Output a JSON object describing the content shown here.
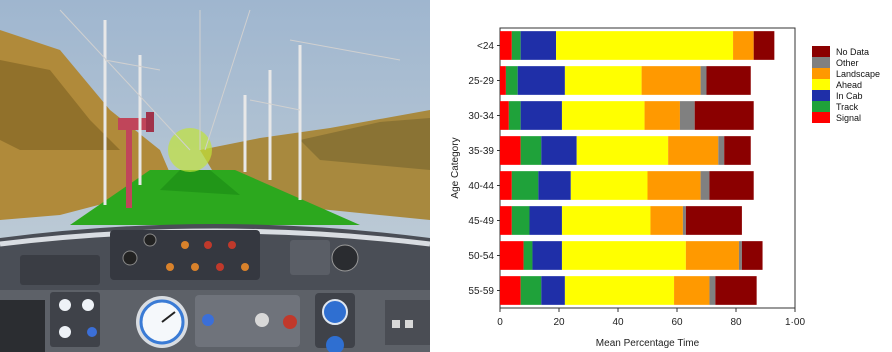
{
  "chart_data": {
    "type": "bar",
    "orientation": "horizontal",
    "stacked": true,
    "categories": [
      "<24",
      "25-29",
      "30-34",
      "35-39",
      "40-44",
      "45-49",
      "50-54",
      "55-59"
    ],
    "series": [
      {
        "name": "Signal",
        "color": "#ff0000",
        "values": [
          4,
          2,
          3,
          7,
          4,
          4,
          8,
          7
        ]
      },
      {
        "name": "Track",
        "color": "#1fa23a",
        "values": [
          3,
          4,
          4,
          7,
          9,
          6,
          3,
          7
        ]
      },
      {
        "name": "In Cab",
        "color": "#1f2fa8",
        "values": [
          12,
          16,
          14,
          12,
          11,
          11,
          10,
          8
        ]
      },
      {
        "name": "Ahead",
        "color": "#ffff00",
        "values": [
          60,
          26,
          28,
          31,
          26,
          30,
          42,
          37
        ]
      },
      {
        "name": "Landscape",
        "color": "#ff9900",
        "values": [
          7,
          20,
          12,
          17,
          18,
          11,
          18,
          12
        ]
      },
      {
        "name": "Other",
        "color": "#808080",
        "values": [
          0,
          2,
          5,
          2,
          3,
          1,
          1,
          2
        ]
      },
      {
        "name": "No Data",
        "color": "#8b0000",
        "values": [
          7,
          15,
          20,
          9,
          15,
          19,
          7,
          14
        ]
      }
    ],
    "xlabel": "Mean Percentage Time",
    "ylabel": "Age Category",
    "xlim": [
      0,
      100
    ],
    "xticks": [
      "0",
      "20",
      "40",
      "60",
      "80",
      "1·00"
    ],
    "grid": false,
    "legend_position": "right",
    "legend_order": [
      "No Data",
      "Other",
      "Landscape",
      "Ahead",
      "In Cab",
      "Track",
      "Signal"
    ]
  }
}
